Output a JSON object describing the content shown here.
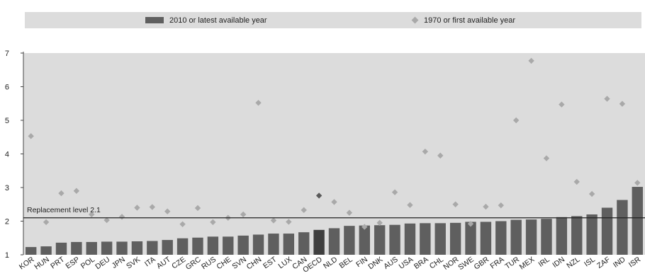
{
  "legend": {
    "bar_label": "2010 or latest available year",
    "diamond_label": "1970 or first available year"
  },
  "colors": {
    "plot_bg": "#dcdcdc",
    "bar": "#5f5f5f",
    "bar_highlight": "#3e3e3e",
    "diamond": "#a9a9a9",
    "diamond_highlight": "#5a5a5a",
    "reference_line": "#222222"
  },
  "chart_data": {
    "type": "bar",
    "title": "",
    "xlabel": "",
    "ylabel": "",
    "ylim": [
      1,
      7
    ],
    "yticks": [
      1,
      2,
      3,
      4,
      5,
      6,
      7
    ],
    "grid": false,
    "legend_position": "top",
    "highlight_category": "OECD",
    "categories": [
      "KOR",
      "HUN",
      "PRT",
      "ESP",
      "POL",
      "DEU",
      "JPN",
      "SVK",
      "ITA",
      "AUT",
      "CZE",
      "GRC",
      "RUS",
      "CHE",
      "SVN",
      "CHN",
      "EST",
      "LUX",
      "CAN",
      "OECD",
      "NLD",
      "BEL",
      "FIN",
      "DNK",
      "AUS",
      "USA",
      "BRA",
      "CHL",
      "NOR",
      "SWE",
      "GBR",
      "FRA",
      "TUR",
      "MEX",
      "IRL",
      "IDN",
      "NZL",
      "ISL",
      "ZAF",
      "IND",
      "ISR"
    ],
    "series": [
      {
        "name": "2010 or latest available year",
        "kind": "bar",
        "values": [
          1.23,
          1.25,
          1.36,
          1.38,
          1.38,
          1.39,
          1.39,
          1.4,
          1.41,
          1.44,
          1.49,
          1.51,
          1.54,
          1.54,
          1.57,
          1.6,
          1.63,
          1.63,
          1.67,
          1.74,
          1.79,
          1.86,
          1.87,
          1.88,
          1.89,
          1.93,
          1.94,
          1.94,
          1.95,
          1.98,
          1.98,
          2.0,
          2.04,
          2.05,
          2.07,
          2.12,
          2.15,
          2.2,
          2.4,
          2.63,
          3.02
        ]
      },
      {
        "name": "1970 or first available year",
        "kind": "diamond",
        "values": [
          4.53,
          1.97,
          2.83,
          2.9,
          2.2,
          2.03,
          2.13,
          2.4,
          2.42,
          2.29,
          1.91,
          2.39,
          1.97,
          2.1,
          2.2,
          5.52,
          2.02,
          1.98,
          2.33,
          2.76,
          2.57,
          2.25,
          1.83,
          1.95,
          2.86,
          2.48,
          4.07,
          3.95,
          2.5,
          1.92,
          2.43,
          2.47,
          5.0,
          6.77,
          3.87,
          5.47,
          3.17,
          2.81,
          5.64,
          5.49,
          3.14
        ]
      }
    ],
    "reference_line": {
      "y": 2.1,
      "label": "Replacement level 2.1"
    }
  }
}
